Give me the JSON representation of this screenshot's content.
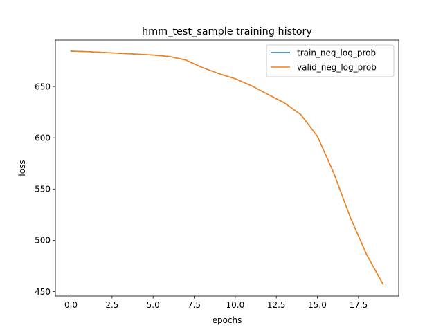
{
  "chart_data": {
    "type": "line",
    "title": "hmm_test_sample training history",
    "xlabel": "epochs",
    "ylabel": "loss",
    "xlim": [
      -0.95,
      19.95
    ],
    "ylim": [
      445.6,
      695.3
    ],
    "x_ticks": [
      0.0,
      2.5,
      5.0,
      7.5,
      10.0,
      12.5,
      15.0,
      17.5
    ],
    "x_tick_labels": [
      "0.0",
      "2.5",
      "5.0",
      "7.5",
      "10.0",
      "12.5",
      "15.0",
      "17.5"
    ],
    "y_ticks": [
      450,
      500,
      550,
      600,
      650
    ],
    "y_tick_labels": [
      "450",
      "500",
      "550",
      "600",
      "650"
    ],
    "grid": false,
    "legend_position": "top-right",
    "x": [
      0,
      1,
      2,
      3,
      4,
      5,
      6,
      7,
      8,
      9,
      10,
      11,
      12,
      13,
      14,
      15,
      16,
      17,
      18,
      19
    ],
    "series": [
      {
        "name": "train_neg_log_prob",
        "color": "#1f77b4",
        "values": [
          684.5,
          684.0,
          683.2,
          682.4,
          681.6,
          680.7,
          679.3,
          675.8,
          668.5,
          662.6,
          657.6,
          650.7,
          642.3,
          634.0,
          622.5,
          601.5,
          565.5,
          522.5,
          486.0,
          457.0
        ]
      },
      {
        "name": "valid_neg_log_prob",
        "color": "#ff7f0e",
        "values": [
          684.5,
          684.0,
          683.2,
          682.4,
          681.6,
          680.7,
          679.3,
          675.8,
          668.5,
          662.6,
          657.6,
          650.7,
          642.3,
          634.0,
          622.5,
          601.5,
          565.5,
          522.5,
          486.0,
          457.0
        ]
      }
    ]
  }
}
